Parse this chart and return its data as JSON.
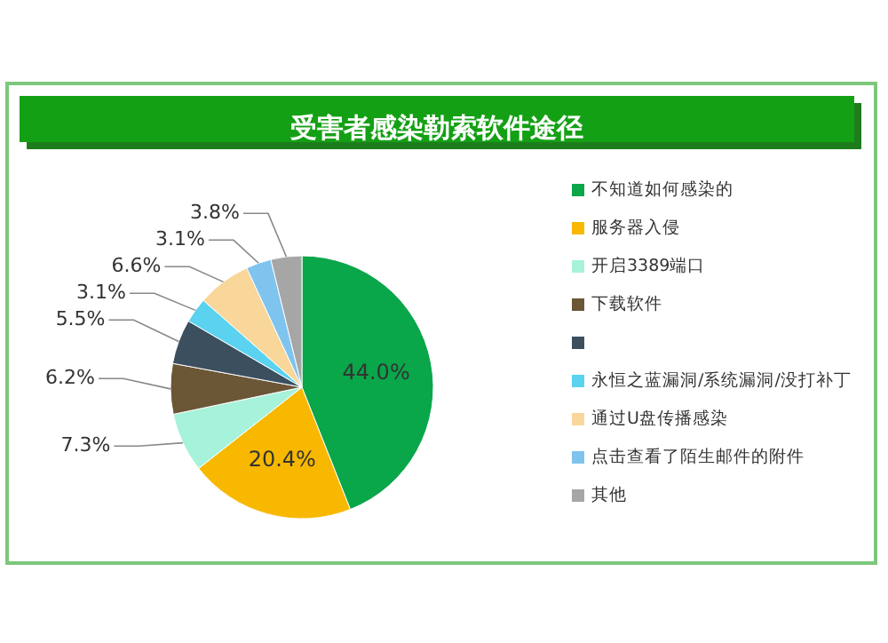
{
  "chart_data": {
    "type": "pie",
    "title": "受害者感染勒索软件途径",
    "categories": [
      "不知道如何感染的",
      "服务器入侵",
      "开启3389端口",
      "下载软件",
      null,
      "永恒之蓝漏洞/系统漏洞/没打补丁",
      "通过U盘传播感染",
      "点击查看了陌生邮件的附件",
      "其他"
    ],
    "values": [
      44.0,
      20.4,
      7.3,
      6.2,
      5.5,
      3.1,
      6.6,
      3.1,
      3.8
    ],
    "value_labels": [
      "44.0%",
      "20.4%",
      "7.3%",
      "6.2%",
      "5.5%",
      "3.1%",
      "6.6%",
      "3.1%",
      "3.8%"
    ],
    "colors": [
      "#0aa64a",
      "#f8b800",
      "#a6f2da",
      "#6b5636",
      "#3b4f5e",
      "#5ad2f0",
      "#f9d79a",
      "#7fc4ee",
      "#a6a6a6"
    ],
    "legend": "right"
  }
}
